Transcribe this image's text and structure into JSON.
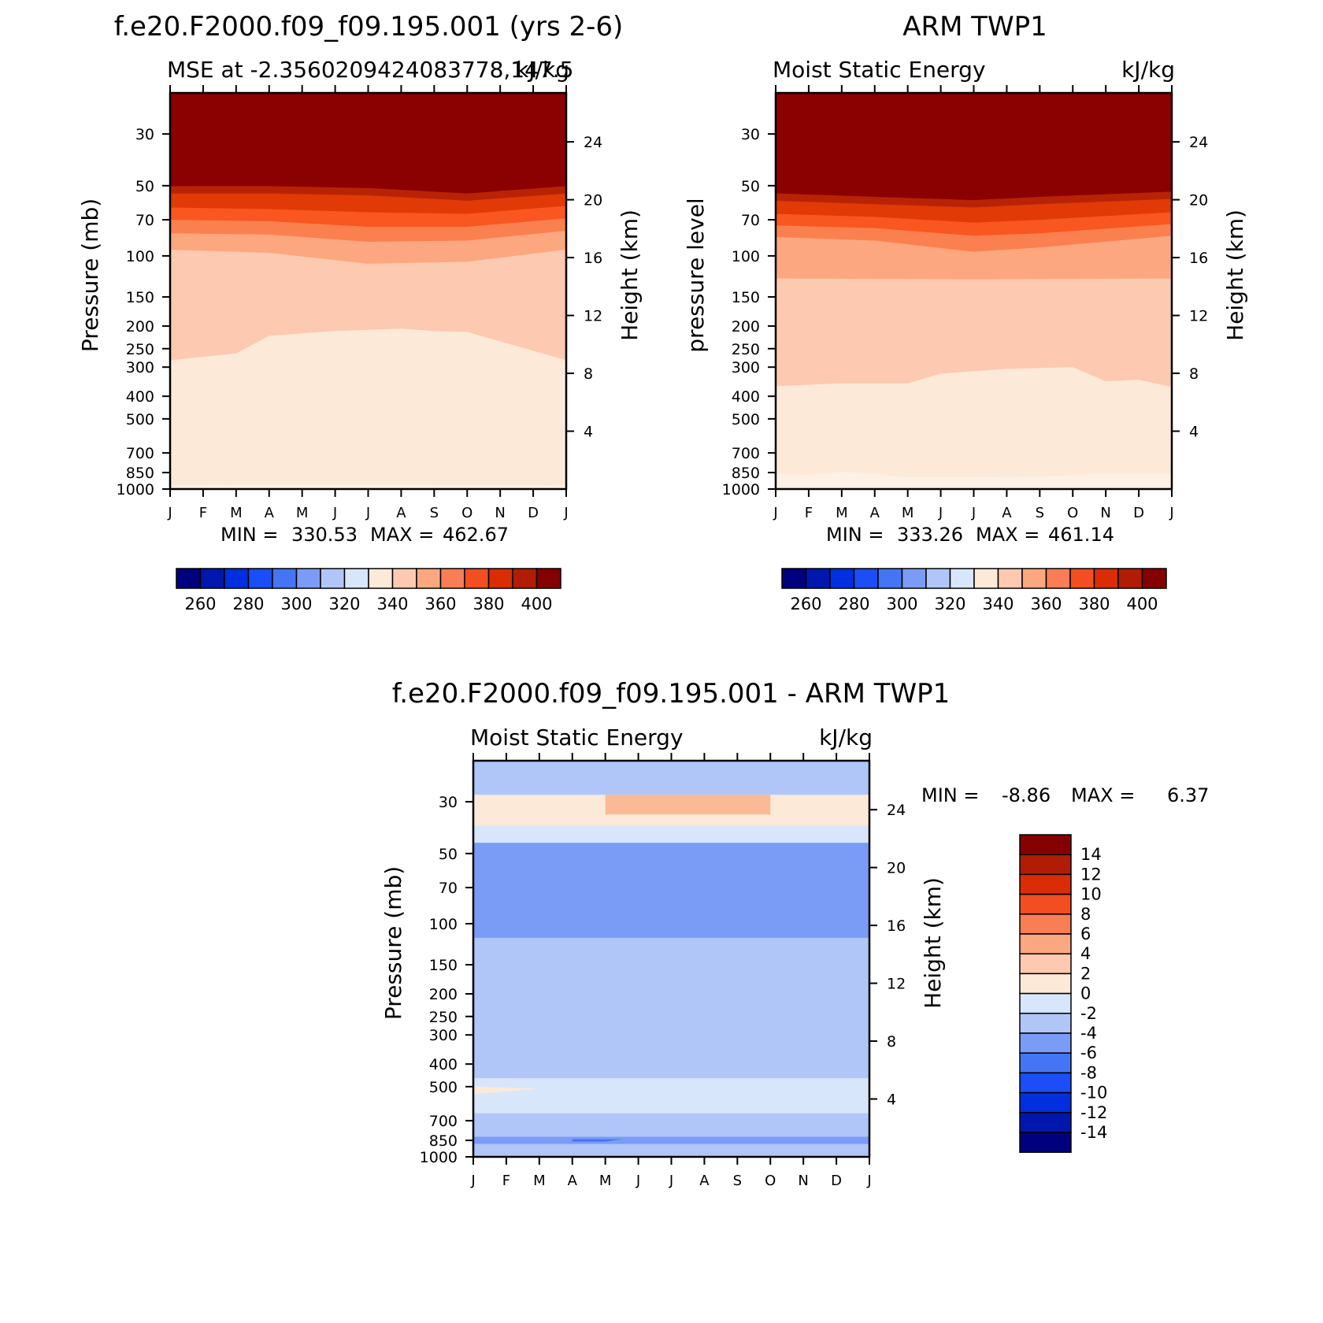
{
  "chart_data": [
    {
      "type": "heatmap",
      "title": "f.e20.F2000.f09_f09.195.001 (yrs 2-6)",
      "subtitle_left": "MSE at -2.3560209424083778,147.5",
      "subtitle_right": "kJ/kg",
      "ylabel": "Pressure (mb)",
      "y2label": "Height (km)",
      "x_ticks": [
        "J",
        "F",
        "M",
        "A",
        "M",
        "J",
        "J",
        "A",
        "S",
        "O",
        "N",
        "D",
        "J"
      ],
      "y_ticks": [
        "30",
        "50",
        "70",
        "100",
        "150",
        "200",
        "250",
        "300",
        "400",
        "500",
        "700",
        "850",
        "1000"
      ],
      "y2_ticks": [
        "24",
        "20",
        "16",
        "12",
        "8",
        "4"
      ],
      "stats": {
        "min_label": "MIN =",
        "min": "330.53",
        "max_label": "MAX =",
        "max": "462.67"
      },
      "levels": [
        250,
        260,
        270,
        280,
        290,
        300,
        310,
        320,
        330,
        340,
        350,
        360,
        370,
        380,
        390,
        400
      ],
      "colorbar_labels": [
        "260",
        "280",
        "300",
        "320",
        "340",
        "360",
        "380",
        "400"
      ],
      "contour_boundaries_mb": {
        "390": [
          [
            0,
            54
          ],
          [
            3,
            54
          ],
          [
            6,
            55
          ],
          [
            9,
            58
          ],
          [
            12,
            54
          ]
        ],
        "380": [
          [
            0,
            62
          ],
          [
            3,
            63
          ],
          [
            6,
            65
          ],
          [
            9,
            66
          ],
          [
            12,
            61
          ]
        ],
        "370": [
          [
            0,
            70
          ],
          [
            3,
            71
          ],
          [
            6,
            75
          ],
          [
            9,
            75
          ],
          [
            12,
            69
          ]
        ],
        "360": [
          [
            0,
            80
          ],
          [
            3,
            81
          ],
          [
            6,
            87
          ],
          [
            9,
            86
          ],
          [
            12,
            78
          ]
        ],
        "350": [
          [
            0,
            94
          ],
          [
            3,
            97
          ],
          [
            6,
            108
          ],
          [
            9,
            106
          ],
          [
            12,
            94
          ]
        ],
        "340": [
          [
            0,
            280
          ],
          [
            2,
            262
          ],
          [
            3,
            220
          ],
          [
            5,
            210
          ],
          [
            7,
            205
          ],
          [
            8,
            210
          ],
          [
            9,
            212
          ],
          [
            12,
            280
          ]
        ],
        "330": [
          [
            0,
            960
          ],
          [
            6,
            958
          ],
          [
            12,
            962
          ]
        ]
      }
    },
    {
      "type": "heatmap",
      "title": "ARM TWP1",
      "subtitle_left": "Moist Static Energy",
      "subtitle_right": "kJ/kg",
      "ylabel": "pressure level",
      "y2label": "Height (km)",
      "x_ticks": [
        "J",
        "F",
        "M",
        "A",
        "M",
        "J",
        "J",
        "A",
        "S",
        "O",
        "N",
        "D",
        "J"
      ],
      "y_ticks": [
        "30",
        "50",
        "70",
        "100",
        "150",
        "200",
        "250",
        "300",
        "400",
        "500",
        "700",
        "850",
        "1000"
      ],
      "y2_ticks": [
        "24",
        "20",
        "16",
        "12",
        "8",
        "4"
      ],
      "stats": {
        "min_label": "MIN =",
        "min": "333.26",
        "max_label": "MAX =",
        "max": "461.14"
      },
      "levels": [
        250,
        260,
        270,
        280,
        290,
        300,
        310,
        320,
        330,
        340,
        350,
        360,
        370,
        380,
        390,
        400
      ],
      "colorbar_labels": [
        "260",
        "280",
        "300",
        "320",
        "340",
        "360",
        "380",
        "400"
      ],
      "contour_boundaries_mb": {
        "390": [
          [
            0,
            58
          ],
          [
            3,
            60
          ],
          [
            6,
            62
          ],
          [
            8,
            60
          ],
          [
            12,
            57
          ]
        ],
        "380": [
          [
            0,
            66
          ],
          [
            3,
            68
          ],
          [
            6,
            72
          ],
          [
            8,
            70
          ],
          [
            12,
            65
          ]
        ],
        "370": [
          [
            0,
            74
          ],
          [
            3,
            76
          ],
          [
            6,
            82
          ],
          [
            8,
            80
          ],
          [
            12,
            73
          ]
        ],
        "360": [
          [
            0,
            83
          ],
          [
            3,
            86
          ],
          [
            6,
            96
          ],
          [
            8,
            92
          ],
          [
            12,
            82
          ]
        ],
        "350": [
          [
            0,
            125
          ],
          [
            6,
            126
          ],
          [
            12,
            125
          ]
        ],
        "340": [
          [
            0,
            362
          ],
          [
            2,
            352
          ],
          [
            4,
            352
          ],
          [
            5,
            320
          ],
          [
            7,
            305
          ],
          [
            9,
            300
          ],
          [
            10,
            345
          ],
          [
            11,
            340
          ],
          [
            12,
            365
          ]
        ],
        "330": [
          [
            0,
            860
          ],
          [
            1,
            870
          ],
          [
            2,
            845
          ],
          [
            3,
            860
          ],
          [
            4,
            890
          ],
          [
            6,
            890
          ],
          [
            8,
            885
          ],
          [
            9,
            870
          ],
          [
            10,
            855
          ],
          [
            12,
            855
          ]
        ]
      }
    },
    {
      "type": "heatmap",
      "title": "f.e20.F2000.f09_f09.195.001 - ARM TWP1",
      "subtitle_left": "Moist Static Energy",
      "subtitle_right": "kJ/kg",
      "ylabel": "Pressure (mb)",
      "y2label": "Height (km)",
      "x_ticks": [
        "J",
        "F",
        "M",
        "A",
        "M",
        "J",
        "J",
        "A",
        "S",
        "O",
        "N",
        "D",
        "J"
      ],
      "y_ticks": [
        "30",
        "50",
        "70",
        "100",
        "150",
        "200",
        "250",
        "300",
        "400",
        "500",
        "700",
        "850",
        "1000"
      ],
      "y2_ticks": [
        "24",
        "20",
        "16",
        "12",
        "8",
        "4"
      ],
      "stats": {
        "min_label": "MIN =",
        "min": "-8.86",
        "max_label": "MAX =",
        "max": "6.37"
      },
      "levels": [
        -16,
        -14,
        -12,
        -10,
        -8,
        -6,
        -4,
        -2,
        0,
        2,
        4,
        6,
        8,
        10,
        12,
        14,
        16
      ],
      "colorbar_labels": [
        "14",
        "12",
        "10",
        "8",
        "6",
        "4",
        "2",
        "0",
        "-2",
        "-4",
        "-6",
        "-8",
        "-10",
        "-12",
        "-14"
      ],
      "features_mb_vs_month": [
        {
          "range": "0 to 2",
          "region": [
            [
              0,
              28
            ],
            [
              6,
              28
            ],
            [
              12,
              28
            ],
            [
              12,
              38
            ],
            [
              6,
              38
            ],
            [
              0,
              38
            ]
          ]
        },
        {
          "range": "2 to 4",
          "region": [
            [
              4,
              28
            ],
            [
              6,
              28
            ],
            [
              7,
              28
            ],
            [
              9,
              28
            ],
            [
              9,
              34
            ],
            [
              4,
              34
            ]
          ]
        },
        {
          "range": "-4 to -2",
          "region": [
            [
              0,
              38
            ],
            [
              12,
              38
            ],
            [
              12,
              45
            ],
            [
              0,
              45
            ]
          ]
        },
        {
          "range": "-6 to -4",
          "region": [
            [
              0,
              45
            ],
            [
              12,
              45
            ],
            [
              12,
              115
            ],
            [
              0,
              115
            ]
          ]
        },
        {
          "range": "-8 to -6",
          "region": [
            [
              3,
              55
            ],
            [
              4.5,
              55
            ],
            [
              4,
              62
            ],
            [
              3,
              60
            ]
          ]
        },
        {
          "range": "-8 to -6",
          "region": [
            [
              0,
              95
            ],
            [
              2,
              100
            ],
            [
              1,
              110
            ],
            [
              0,
              110
            ]
          ]
        },
        {
          "range": "-2 to 0",
          "region": [
            [
              0,
              460
            ],
            [
              12,
              460
            ],
            [
              12,
              650
            ],
            [
              0,
              650
            ]
          ]
        },
        {
          "range": "0 to 2",
          "region": [
            [
              0,
              500
            ],
            [
              2,
              510
            ],
            [
              0,
              540
            ]
          ]
        },
        {
          "range": "-8 to -6",
          "region": [
            [
              0,
              820
            ],
            [
              12,
              820
            ],
            [
              12,
              880
            ],
            [
              0,
              880
            ]
          ]
        },
        {
          "range": "-10 to -8",
          "region": [
            [
              3,
              840
            ],
            [
              4.5,
              840
            ],
            [
              4,
              860
            ],
            [
              3,
              860
            ]
          ]
        }
      ]
    }
  ]
}
